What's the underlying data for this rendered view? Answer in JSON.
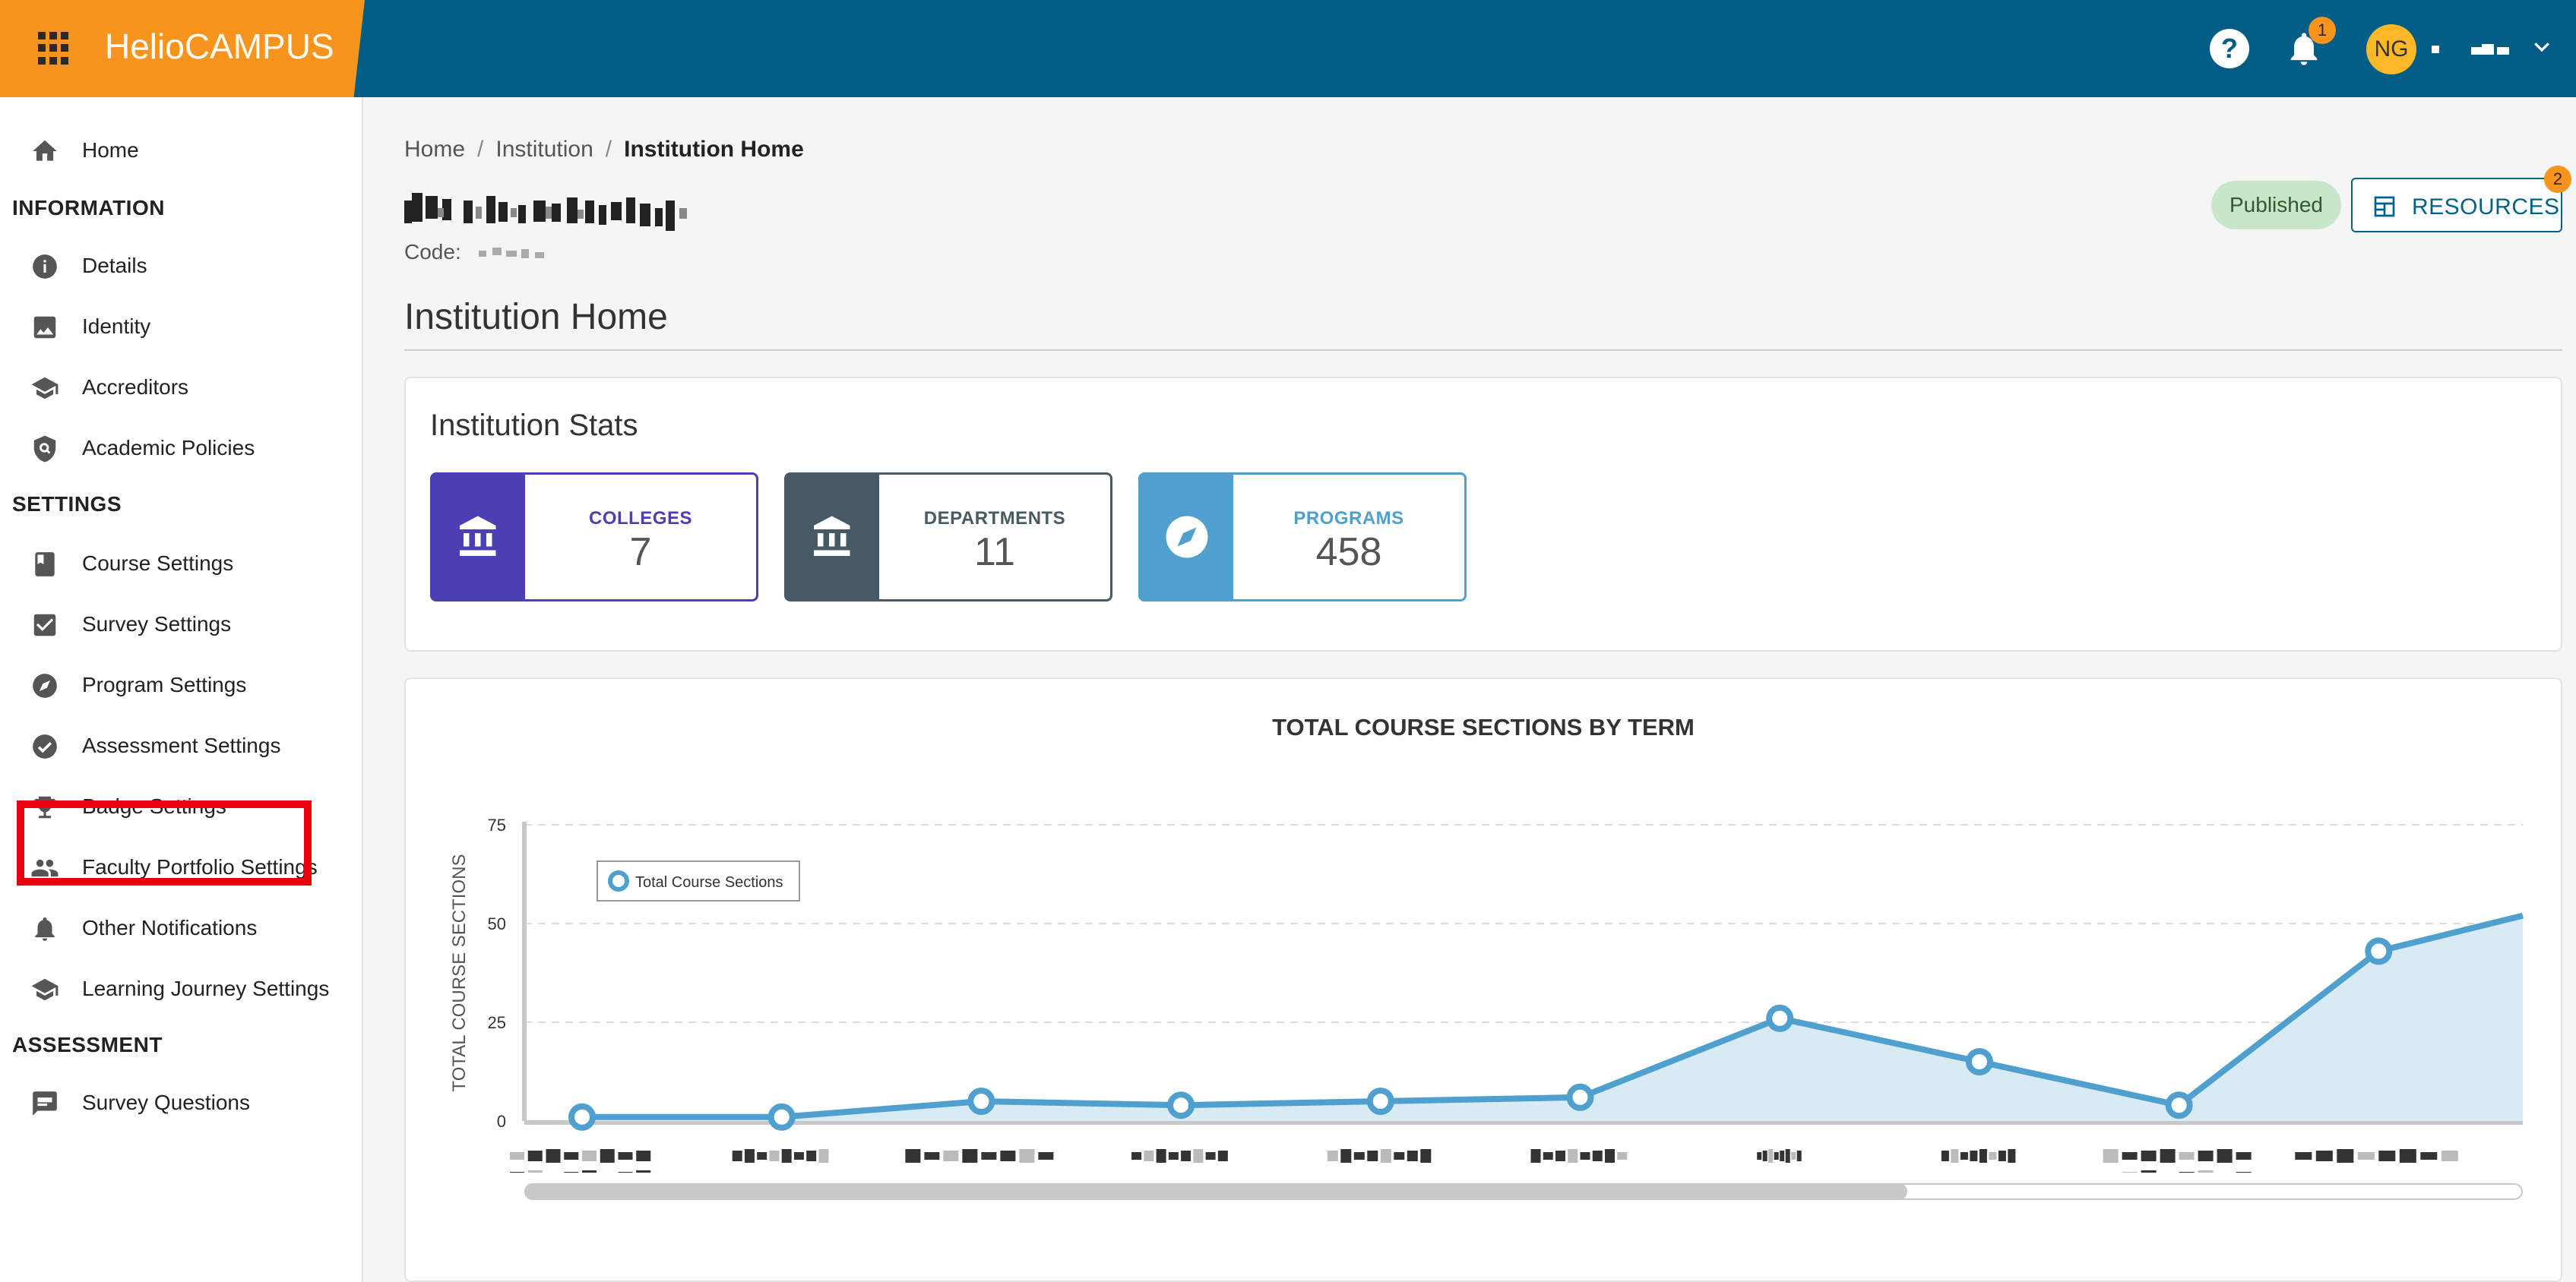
{
  "topbar": {
    "brand_helio": "Helio",
    "brand_campus": "CAMPUS",
    "help_symbol": "?",
    "notification_count": "1",
    "user_initials": "NG",
    "colors": {
      "bar": "#005e86",
      "brand": "#f7941d",
      "avatar": "#fcb827"
    }
  },
  "sidebar": {
    "home": "Home",
    "sections": {
      "information": "INFORMATION",
      "settings": "SETTINGS",
      "assessment": "ASSESSMENT"
    },
    "information_items": [
      {
        "label": "Details",
        "icon": "info-icon"
      },
      {
        "label": "Identity",
        "icon": "image-icon"
      },
      {
        "label": "Accreditors",
        "icon": "graduation-cap-icon"
      },
      {
        "label": "Academic Policies",
        "icon": "policy-shield-icon"
      }
    ],
    "settings_items": [
      {
        "label": "Course Settings",
        "icon": "book-icon"
      },
      {
        "label": "Survey Settings",
        "icon": "checkbox-icon"
      },
      {
        "label": "Program Settings",
        "icon": "compass-icon"
      },
      {
        "label": "Assessment Settings",
        "icon": "check-circle-icon"
      },
      {
        "label": "Badge Settings",
        "icon": "trophy-icon"
      },
      {
        "label": "Faculty Portfolio Settings",
        "icon": "people-icon"
      },
      {
        "label": "Other Notifications",
        "icon": "bell-icon"
      },
      {
        "label": "Learning Journey Settings",
        "icon": "graduation-cap-icon"
      }
    ],
    "assessment_items": [
      {
        "label": "Survey Questions",
        "icon": "comment-icon"
      }
    ]
  },
  "breadcrumb": {
    "home": "Home",
    "institution": "Institution",
    "current": "Institution Home",
    "separator": "/"
  },
  "header": {
    "code_label": "Code:",
    "status": "Published",
    "resources_label": "RESOURCES",
    "resources_count": "2"
  },
  "page_title": "Institution Home",
  "stats": {
    "title": "Institution Stats",
    "items": [
      {
        "label": "COLLEGES",
        "value": "7",
        "color": "#4b3fb3",
        "icon": "bank-icon"
      },
      {
        "label": "DEPARTMENTS",
        "value": "11",
        "color": "#455a64",
        "icon": "bank-icon"
      },
      {
        "label": "PROGRAMS",
        "value": "458",
        "color": "#4f9fcf",
        "icon": "compass-icon"
      }
    ]
  },
  "chart_data": {
    "type": "area",
    "title": "TOTAL COURSE SECTIONS BY TERM",
    "xlabel": "",
    "ylabel": "TOTAL COURSE SECTIONS",
    "ylim": [
      0,
      75
    ],
    "yticks": [
      0,
      25,
      50,
      75
    ],
    "grid": true,
    "legend_position": "top-left",
    "series": [
      {
        "name": "Total Course Sections",
        "color": "#4f9fcf",
        "values": [
          1,
          1,
          5,
          4,
          5,
          6,
          26,
          15,
          4,
          43
        ]
      }
    ],
    "series_continues_right": 52
  }
}
